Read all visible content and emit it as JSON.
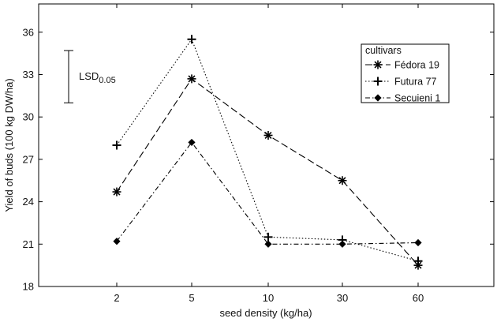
{
  "chart_data": {
    "type": "line",
    "title": "",
    "xlabel": "seed density (kg/ha)",
    "ylabel": "Yield of buds (100 kg DW/ha)",
    "categories": [
      "2",
      "5",
      "10",
      "30",
      "60"
    ],
    "ylim": [
      18,
      38
    ],
    "yticks": [
      18,
      21,
      24,
      27,
      30,
      33,
      36
    ],
    "grid": false,
    "legend": {
      "title": "cultivars",
      "position": "top-right"
    },
    "series": [
      {
        "name": "Fédora 19",
        "values": [
          24.7,
          32.7,
          28.7,
          25.5,
          19.5
        ],
        "marker": "asterisk",
        "dash": "dashed"
      },
      {
        "name": "Futura 77",
        "values": [
          28.0,
          35.5,
          21.5,
          21.3,
          19.8
        ],
        "marker": "plus",
        "dash": "dotted"
      },
      {
        "name": "Secuieni 1",
        "values": [
          21.2,
          28.2,
          21.0,
          21.0,
          21.1
        ],
        "marker": "diamond",
        "dash": "dashdot"
      }
    ],
    "lsd": {
      "label": "LSD",
      "subscript": "0.05",
      "low": 31.0,
      "high": 34.7
    }
  }
}
